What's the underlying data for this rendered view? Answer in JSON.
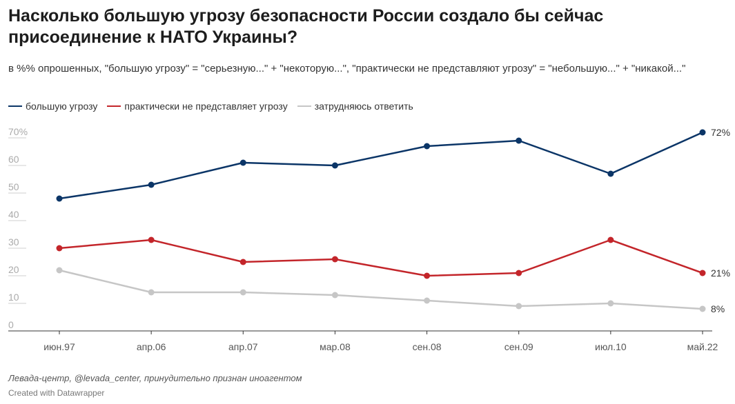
{
  "header": {
    "title": "Насколько большую угрозу безопасности России создало бы сейчас присоединение к НАТО Украины?",
    "subtitle": "в %% опрошенных, \"большую угрозу\" = \"серьезную...\" + \"некоторую...\", \"практически не представляют угрозу\" = \"небольшую...\" + \"никакой...\""
  },
  "legend": [
    {
      "label": "большую угрозу",
      "color": "#0b3567"
    },
    {
      "label": "практически не представляет угрозу",
      "color": "#c3252a"
    },
    {
      "label": "затрудняюсь ответить",
      "color": "#c6c6c6"
    }
  ],
  "chart_data": {
    "type": "line",
    "categories": [
      "июн.97",
      "апр.06",
      "апр.07",
      "мар.08",
      "сен.08",
      "сен.09",
      "июл.10",
      "май.22"
    ],
    "series": [
      {
        "name": "большую угрозу",
        "color": "#0b3567",
        "values": [
          48,
          53,
          61,
          60,
          67,
          69,
          57,
          72
        ],
        "end_label": "72%"
      },
      {
        "name": "практически не представляет угрозу",
        "color": "#c3252a",
        "values": [
          30,
          33,
          25,
          26,
          20,
          21,
          33,
          21
        ],
        "end_label": "21%"
      },
      {
        "name": "затрудняюсь ответить",
        "color": "#c6c6c6",
        "values": [
          22,
          14,
          14,
          13,
          11,
          9,
          10,
          8
        ],
        "end_label": "8%"
      }
    ],
    "y_ticks": [
      "0",
      "10",
      "20",
      "30",
      "40",
      "50",
      "60",
      "70%"
    ],
    "ylim": [
      0,
      70
    ],
    "grid": false,
    "legend_position": "top-left"
  },
  "footer": {
    "source": "Левада-центр, @levada_center, принудительно признан иноагентом",
    "credit": "Created with Datawrapper"
  }
}
